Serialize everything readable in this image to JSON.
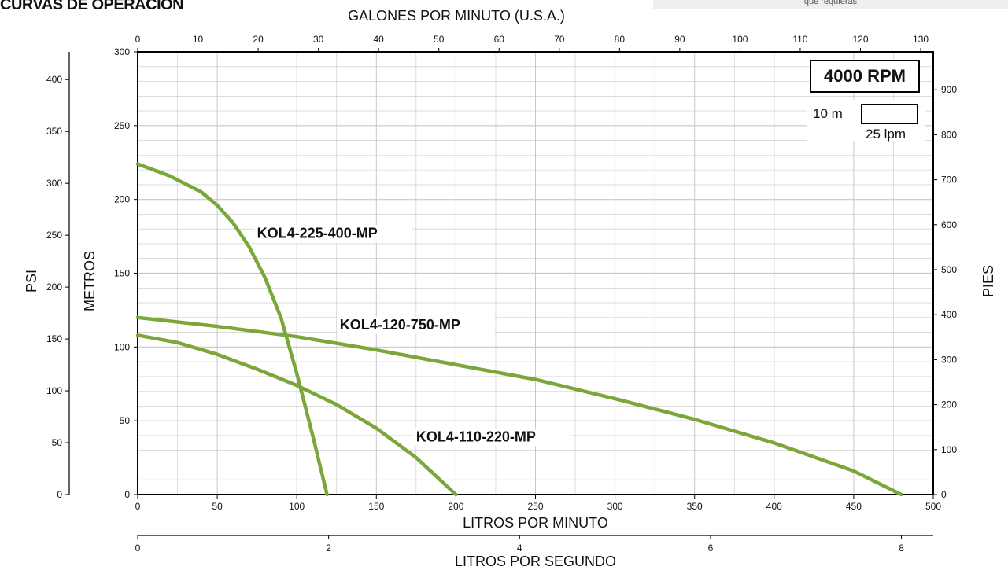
{
  "header": {
    "title": "CURVAS DE OPERACION",
    "top_note": "que requieras"
  },
  "chart_data": {
    "type": "line",
    "title": "CURVAS DE OPERACION",
    "xlabel": "LITROS POR MINUTO",
    "ylabel": "METROS",
    "xlim": [
      0,
      500
    ],
    "ylim": [
      0,
      300
    ],
    "grid": true,
    "x_ticks": [
      0,
      50,
      100,
      150,
      200,
      250,
      300,
      350,
      400,
      450,
      500
    ],
    "y_ticks": [
      0,
      50,
      100,
      150,
      200,
      250,
      300
    ],
    "secondary_axes": {
      "top": {
        "label": "GALONES POR MINUTO (U.S.A.)",
        "ticks": [
          0,
          10,
          20,
          30,
          40,
          50,
          60,
          70,
          80,
          90,
          100,
          110,
          120,
          130
        ]
      },
      "bottom2": {
        "label": "LITROS POR SEGUNDO",
        "ticks": [
          0,
          2,
          4,
          6,
          8
        ]
      },
      "left_psi": {
        "label": "PSI",
        "ticks": [
          0,
          50,
          100,
          150,
          200,
          250,
          300,
          350,
          400
        ]
      },
      "right_pies": {
        "label": "PIES",
        "ticks": [
          0,
          100,
          200,
          300,
          400,
          500,
          600,
          700,
          800,
          900
        ]
      }
    },
    "annotation_box": "4000 RPM",
    "scale_legend": {
      "height_label": "10 m",
      "flow_label": "25 lpm"
    },
    "series": [
      {
        "name": "KOL4-225-400-MP",
        "x": [
          0,
          20,
          40,
          50,
          60,
          70,
          80,
          90,
          100,
          110,
          119
        ],
        "y": [
          224,
          216,
          205,
          196,
          184,
          168,
          147,
          120,
          82,
          40,
          0
        ]
      },
      {
        "name": "KOL4-120-750-MP",
        "x": [
          0,
          50,
          100,
          150,
          200,
          250,
          300,
          350,
          400,
          450,
          480
        ],
        "y": [
          120,
          114,
          107,
          98,
          88,
          78,
          65,
          51,
          35,
          16,
          0
        ]
      },
      {
        "name": "KOL4-110-220-MP",
        "x": [
          0,
          25,
          50,
          75,
          100,
          125,
          150,
          175,
          200
        ],
        "y": [
          108,
          103,
          95,
          85,
          74,
          61,
          45,
          25,
          0
        ]
      }
    ],
    "colors": {
      "curve": "#7aa63a",
      "grid": "#c8c8c8",
      "axis": "#000000"
    }
  }
}
